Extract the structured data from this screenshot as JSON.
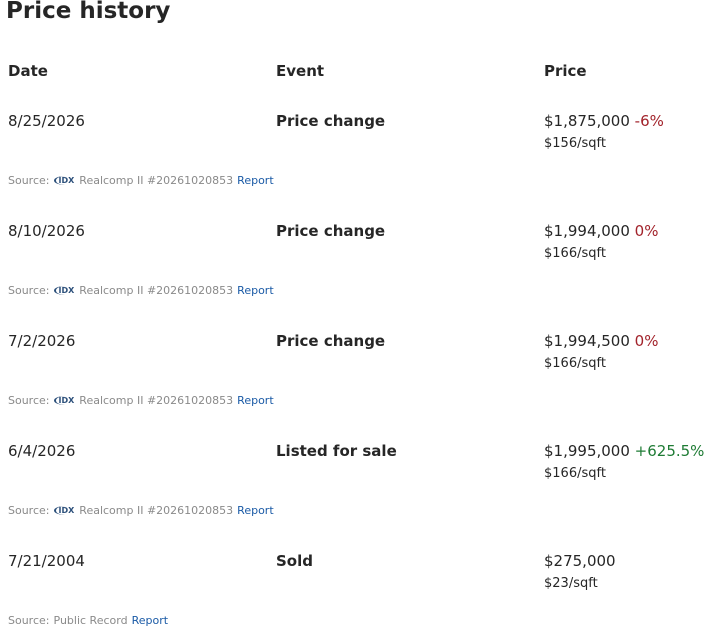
{
  "header": {
    "title": "Price history"
  },
  "table": {
    "columns": [
      "Date",
      "Event",
      "Price"
    ],
    "rows": [
      {
        "date": "8/25/2026",
        "event": "Price change",
        "price": "$1,875,000",
        "change": "-6%",
        "change_color": "#a2232b",
        "per_sqft": "$156/sqft",
        "source_label": "Source:",
        "source_logo": "IDX",
        "source": "Realcomp II #20261020853",
        "report": "Report"
      },
      {
        "date": "8/10/2026",
        "event": "Price change",
        "price": "$1,994,000",
        "change": "0%",
        "change_color": "#a2232b",
        "per_sqft": "$166/sqft",
        "source_label": "Source:",
        "source_logo": "IDX",
        "source": "Realcomp II #20261020853",
        "report": "Report"
      },
      {
        "date": "7/2/2026",
        "event": "Price change",
        "price": "$1,994,500",
        "change": "0%",
        "change_color": "#a2232b",
        "per_sqft": "$166/sqft",
        "source_label": "Source:",
        "source_logo": "IDX",
        "source": "Realcomp II #20261020853",
        "report": "Report"
      },
      {
        "date": "6/4/2026",
        "event": "Listed for sale",
        "price": "$1,995,000",
        "change": "+625.5%",
        "change_color": "#1e7b34",
        "per_sqft": "$166/sqft",
        "source_label": "Source:",
        "source_logo": "IDX",
        "source": "Realcomp II #20261020853",
        "report": "Report"
      },
      {
        "date": "7/21/2004",
        "event": "Sold",
        "price": "$275,000",
        "per_sqft": "$23/sqft",
        "source_label": "Source:",
        "source": "Public Record",
        "report": "Report"
      }
    ]
  }
}
